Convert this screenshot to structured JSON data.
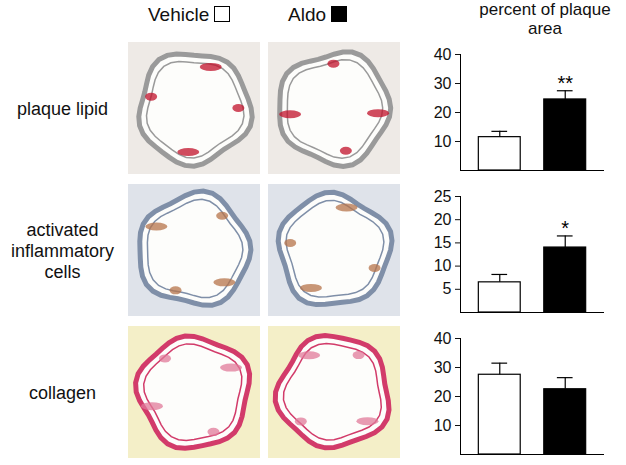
{
  "chart_data": [
    {
      "type": "bar",
      "title": "plaque lipid",
      "ylabel": "percent of plaque area",
      "legend": "top",
      "categories": [
        "Vehicle",
        "Aldo"
      ],
      "colors": [
        "#ffffff",
        "#000000"
      ],
      "values": [
        11.5,
        24.5
      ],
      "errors": [
        2,
        3
      ],
      "annotations": [
        {
          "category": "Aldo",
          "text": "**"
        }
      ],
      "ylim": [
        0,
        40
      ],
      "yticks": [
        10,
        20,
        30,
        40
      ],
      "tick_labels": "y"
    },
    {
      "type": "bar",
      "title": "activated inflammatory cells",
      "categories": [
        "Vehicle",
        "Aldo"
      ],
      "colors": [
        "#ffffff",
        "#000000"
      ],
      "values": [
        6.5,
        14
      ],
      "errors": [
        1.7,
        2.5
      ],
      "annotations": [
        {
          "category": "Aldo",
          "text": "*"
        }
      ],
      "ylim": [
        0,
        25
      ],
      "yticks": [
        5,
        10,
        15,
        20,
        25
      ],
      "tick_labels": "y"
    },
    {
      "type": "bar",
      "title": "collagen",
      "categories": [
        "Vehicle",
        "Aldo"
      ],
      "colors": [
        "#ffffff",
        "#000000"
      ],
      "values": [
        27.5,
        22.5
      ],
      "errors": [
        4,
        4
      ],
      "ylim": [
        0,
        40
      ],
      "yticks": [
        10,
        20,
        30,
        40
      ],
      "tick_labels": "y"
    }
  ]
}
